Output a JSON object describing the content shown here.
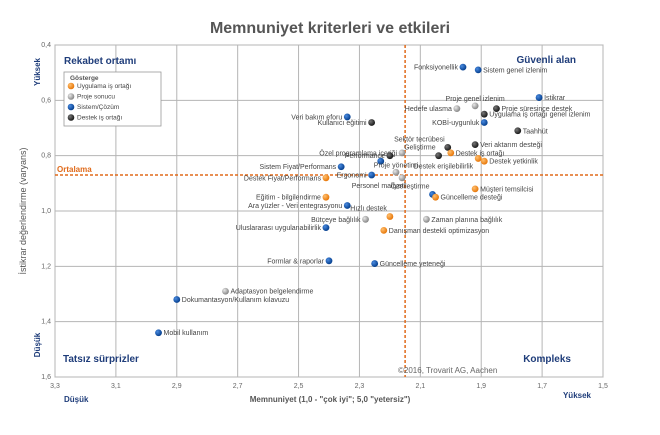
{
  "chart_data": {
    "type": "scatter",
    "title": "Memnuniyet kriterleri ve etkileri",
    "xlabel": "Memnuniyet (1,0 - \"çok iyi\"; 5,0 \"yetersiz\")",
    "ylabel": "İstikrar değerlendirme (varyans)",
    "xlim": [
      3.3,
      1.5
    ],
    "ylim": [
      0.4,
      1.6
    ],
    "x_reversed": true,
    "y_reversed": true,
    "xticks": [
      "3,3",
      "3,1",
      "2,9",
      "2,7",
      "2,5",
      "2,3",
      "2,1",
      "1,9",
      "1,7",
      "1,5"
    ],
    "yticks": [
      "0,4",
      "0,6",
      "0,8",
      "1,0",
      "1,2",
      "1,4",
      "1,6"
    ],
    "grid": true,
    "x_axis_ends": {
      "low": "Düşük",
      "high": "Yüksek"
    },
    "y_axis_ends": {
      "high": "Yüksek",
      "low": "Düşük"
    },
    "mean_lines": {
      "x": 2.15,
      "y": 0.87,
      "label": "Ortalama"
    },
    "quadrants": {
      "top_left": "Rekabet ortamı",
      "top_right": "Güvenli alan",
      "bottom_left": "Tatsız sürprizler",
      "bottom_right": "Kompleks"
    },
    "legend": {
      "title": "Gösterge",
      "position": "top-left",
      "entries": [
        {
          "key": "uygulama",
          "label": "Uygulama iş ortağı",
          "color": "#f28a1c"
        },
        {
          "key": "proje",
          "label": "Proje sonucu",
          "color": "#a8a8a8"
        },
        {
          "key": "sistem",
          "label": "Sistem/Çözüm",
          "color": "#0d4fa8"
        },
        {
          "key": "destek",
          "label": "Destek iş ortağı",
          "color": "#333333"
        }
      ]
    },
    "copyright": "©2016, Trovarit AG, Aachen",
    "points": [
      {
        "label": "Fonksiyonellik",
        "x": 1.96,
        "y": 0.48,
        "cat": "sistem",
        "side": "left"
      },
      {
        "label": "Sistem genel izlenim",
        "x": 1.91,
        "y": 0.49,
        "cat": "sistem",
        "side": "right"
      },
      {
        "label": "İstikrar",
        "x": 1.71,
        "y": 0.59,
        "cat": "sistem",
        "side": "right"
      },
      {
        "label": "Hedefe ulasma",
        "x": 1.98,
        "y": 0.63,
        "cat": "proje",
        "side": "left"
      },
      {
        "label": "Proje genel izlenim",
        "x": 1.92,
        "y": 0.62,
        "cat": "proje",
        "side": "above"
      },
      {
        "label": "Proje süresince destek",
        "x": 1.85,
        "y": 0.63,
        "cat": "destek",
        "side": "right"
      },
      {
        "label": "Uygulama iş ortağı genel izlenim",
        "x": 1.89,
        "y": 0.65,
        "cat": "destek",
        "side": "right"
      },
      {
        "label": "KOBİ-uygunluk",
        "x": 1.89,
        "y": 0.68,
        "cat": "sistem",
        "side": "left"
      },
      {
        "label": "Taahhüt",
        "x": 1.78,
        "y": 0.71,
        "cat": "destek",
        "side": "right"
      },
      {
        "label": "Veri bakım eforu",
        "x": 2.34,
        "y": 0.66,
        "cat": "sistem",
        "side": "left"
      },
      {
        "label": "Kullanıcı eğitimi",
        "x": 2.26,
        "y": 0.68,
        "cat": "destek",
        "side": "left"
      },
      {
        "label": "Sektör tecrübesi",
        "x": 2.01,
        "y": 0.77,
        "cat": "destek",
        "side": "above-left"
      },
      {
        "label": "Veri aktarım desteği",
        "x": 1.92,
        "y": 0.76,
        "cat": "destek",
        "side": "right"
      },
      {
        "label": "Geliştirme",
        "x": 2.04,
        "y": 0.8,
        "cat": "destek",
        "side": "above-left"
      },
      {
        "label": "Destek iş ortağı",
        "x": 2.0,
        "y": 0.79,
        "cat": "uygulama",
        "side": "right"
      },
      {
        "label": "Destek yetkinlik",
        "x": 1.89,
        "y": 0.82,
        "cat": "uygulama",
        "side": "right"
      },
      {
        "label": "Destek erişilebilirlik",
        "x": 1.91,
        "y": 0.81,
        "cat": "uygulama",
        "side": "left-below"
      },
      {
        "label": "Özel programlama içeriği",
        "x": 2.16,
        "y": 0.79,
        "cat": "proje",
        "side": "left"
      },
      {
        "label": "Performance",
        "x": 2.2,
        "y": 0.8,
        "cat": "destek",
        "side": "left"
      },
      {
        "label": "Performance",
        "x": 2.23,
        "y": 0.82,
        "cat": "sistem",
        "side": "none"
      },
      {
        "label": "Proje yönetimi",
        "x": 2.18,
        "y": 0.86,
        "cat": "proje",
        "side": "above"
      },
      {
        "label": "Sistem Fiyat/Performans",
        "x": 2.36,
        "y": 0.84,
        "cat": "sistem",
        "side": "left"
      },
      {
        "label": "Ergonomi",
        "x": 2.26,
        "y": 0.87,
        "cat": "sistem",
        "side": "left"
      },
      {
        "label": "Destek Fiyat/Performans",
        "x": 2.41,
        "y": 0.88,
        "cat": "uygulama",
        "side": "left"
      },
      {
        "label": "Personel maliyeti",
        "x": 2.16,
        "y": 0.88,
        "cat": "proje",
        "side": "below-left"
      },
      {
        "label": "Müşteri temsilcisi",
        "x": 1.92,
        "y": 0.92,
        "cat": "uygulama",
        "side": "right"
      },
      {
        "label": "Özelleştirme",
        "x": 2.06,
        "y": 0.94,
        "cat": "sistem",
        "side": "above-left"
      },
      {
        "label": "Güncelleme desteği",
        "x": 2.05,
        "y": 0.95,
        "cat": "uygulama",
        "side": "right"
      },
      {
        "label": "Eğitim - bilgilendirme",
        "x": 2.41,
        "y": 0.95,
        "cat": "uygulama",
        "side": "left"
      },
      {
        "label": "Ara yüzler - Veri entegrasyonu",
        "x": 2.34,
        "y": 0.98,
        "cat": "sistem",
        "side": "left"
      },
      {
        "label": "Hızlı destek",
        "x": 2.2,
        "y": 1.02,
        "cat": "uygulama",
        "side": "above-left"
      },
      {
        "label": "Bütçeye bağlılık",
        "x": 2.28,
        "y": 1.03,
        "cat": "proje",
        "side": "left"
      },
      {
        "label": "Zaman planına bağlılık",
        "x": 2.08,
        "y": 1.03,
        "cat": "proje",
        "side": "right"
      },
      {
        "label": "Uluslararası uygulanabilirlik",
        "x": 2.41,
        "y": 1.06,
        "cat": "sistem",
        "side": "left"
      },
      {
        "label": "Danışman destekli optimizasyon",
        "x": 2.22,
        "y": 1.07,
        "cat": "uygulama",
        "side": "right"
      },
      {
        "label": "Formlar & raporlar",
        "x": 2.4,
        "y": 1.18,
        "cat": "sistem",
        "side": "left"
      },
      {
        "label": "Güncelleme yeteneği",
        "x": 2.25,
        "y": 1.19,
        "cat": "sistem",
        "side": "right"
      },
      {
        "label": "Adaptasyon belgelendirme",
        "x": 2.74,
        "y": 1.29,
        "cat": "proje",
        "side": "right"
      },
      {
        "label": "Dokumantasyon/Kullanım kılavuzu",
        "x": 2.9,
        "y": 1.32,
        "cat": "sistem",
        "side": "right"
      },
      {
        "label": "Mobil kullanım",
        "x": 2.96,
        "y": 1.44,
        "cat": "sistem",
        "side": "right"
      }
    ]
  }
}
